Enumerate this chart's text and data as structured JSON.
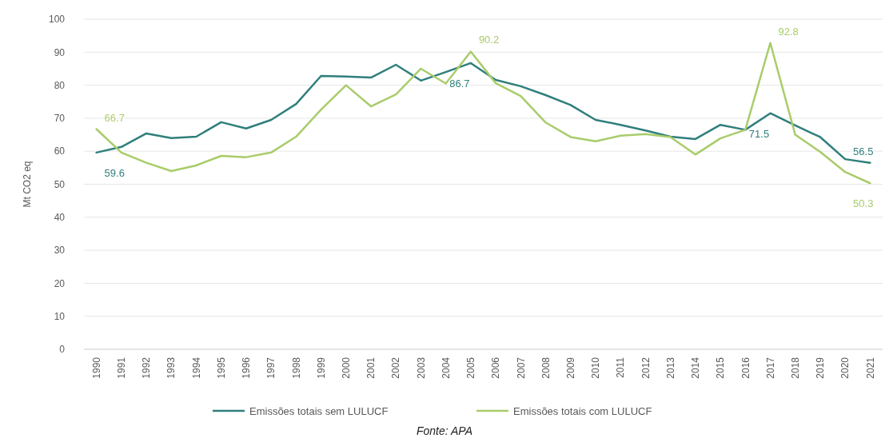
{
  "chart_data": {
    "type": "line",
    "ylabel": "Mt CO2 eq",
    "categories": [
      "1990",
      "1991",
      "1992",
      "1993",
      "1994",
      "1995",
      "1996",
      "1997",
      "1998",
      "1999",
      "2000",
      "2001",
      "2002",
      "2003",
      "2004",
      "2005",
      "2006",
      "2007",
      "2008",
      "2009",
      "2010",
      "2011",
      "2012",
      "2013",
      "2014",
      "2015",
      "2016",
      "2017",
      "2018",
      "2019",
      "2020",
      "2021"
    ],
    "series": [
      {
        "name": "Emissões totais sem LULUCF",
        "color": "#2f7f7c",
        "values": [
          59.6,
          61.3,
          65.4,
          64.0,
          64.4,
          68.8,
          66.9,
          69.5,
          74.3,
          82.8,
          82.6,
          82.3,
          86.2,
          81.4,
          84.0,
          86.7,
          81.6,
          79.7,
          77.0,
          74.0,
          69.5,
          68.0,
          66.3,
          64.4,
          63.7,
          68.0,
          66.5,
          71.5,
          67.8,
          64.3,
          57.6,
          56.5
        ],
        "value_labels": [
          "59.6",
          null,
          null,
          null,
          null,
          null,
          null,
          null,
          null,
          null,
          null,
          null,
          null,
          null,
          null,
          "86.7",
          null,
          null,
          null,
          null,
          null,
          null,
          null,
          null,
          null,
          null,
          null,
          "71.5",
          null,
          null,
          null,
          "56.5"
        ]
      },
      {
        "name": "Emissões totais com LULUCF",
        "color": "#a9cc6b",
        "values": [
          66.7,
          59.6,
          56.5,
          54.0,
          55.7,
          58.6,
          58.2,
          59.6,
          64.4,
          72.6,
          80.0,
          73.6,
          77.2,
          85.0,
          80.5,
          90.2,
          80.6,
          76.7,
          68.7,
          64.3,
          63.0,
          64.7,
          65.2,
          64.3,
          59.0,
          63.9,
          66.5,
          92.8,
          65.0,
          59.8,
          53.7,
          50.3
        ],
        "value_labels": [
          "66.7",
          null,
          null,
          null,
          null,
          null,
          null,
          null,
          null,
          null,
          null,
          null,
          null,
          null,
          null,
          "90.2",
          null,
          null,
          null,
          null,
          null,
          null,
          null,
          null,
          null,
          null,
          null,
          "92.8",
          null,
          null,
          null,
          "50.3"
        ]
      }
    ],
    "ylim": [
      0,
      100
    ],
    "yticks": [
      0,
      10,
      20,
      30,
      40,
      50,
      60,
      70,
      80,
      90,
      100
    ],
    "grid": "y",
    "legend": "bottom",
    "annotations": [
      "Fonte: APA"
    ]
  }
}
